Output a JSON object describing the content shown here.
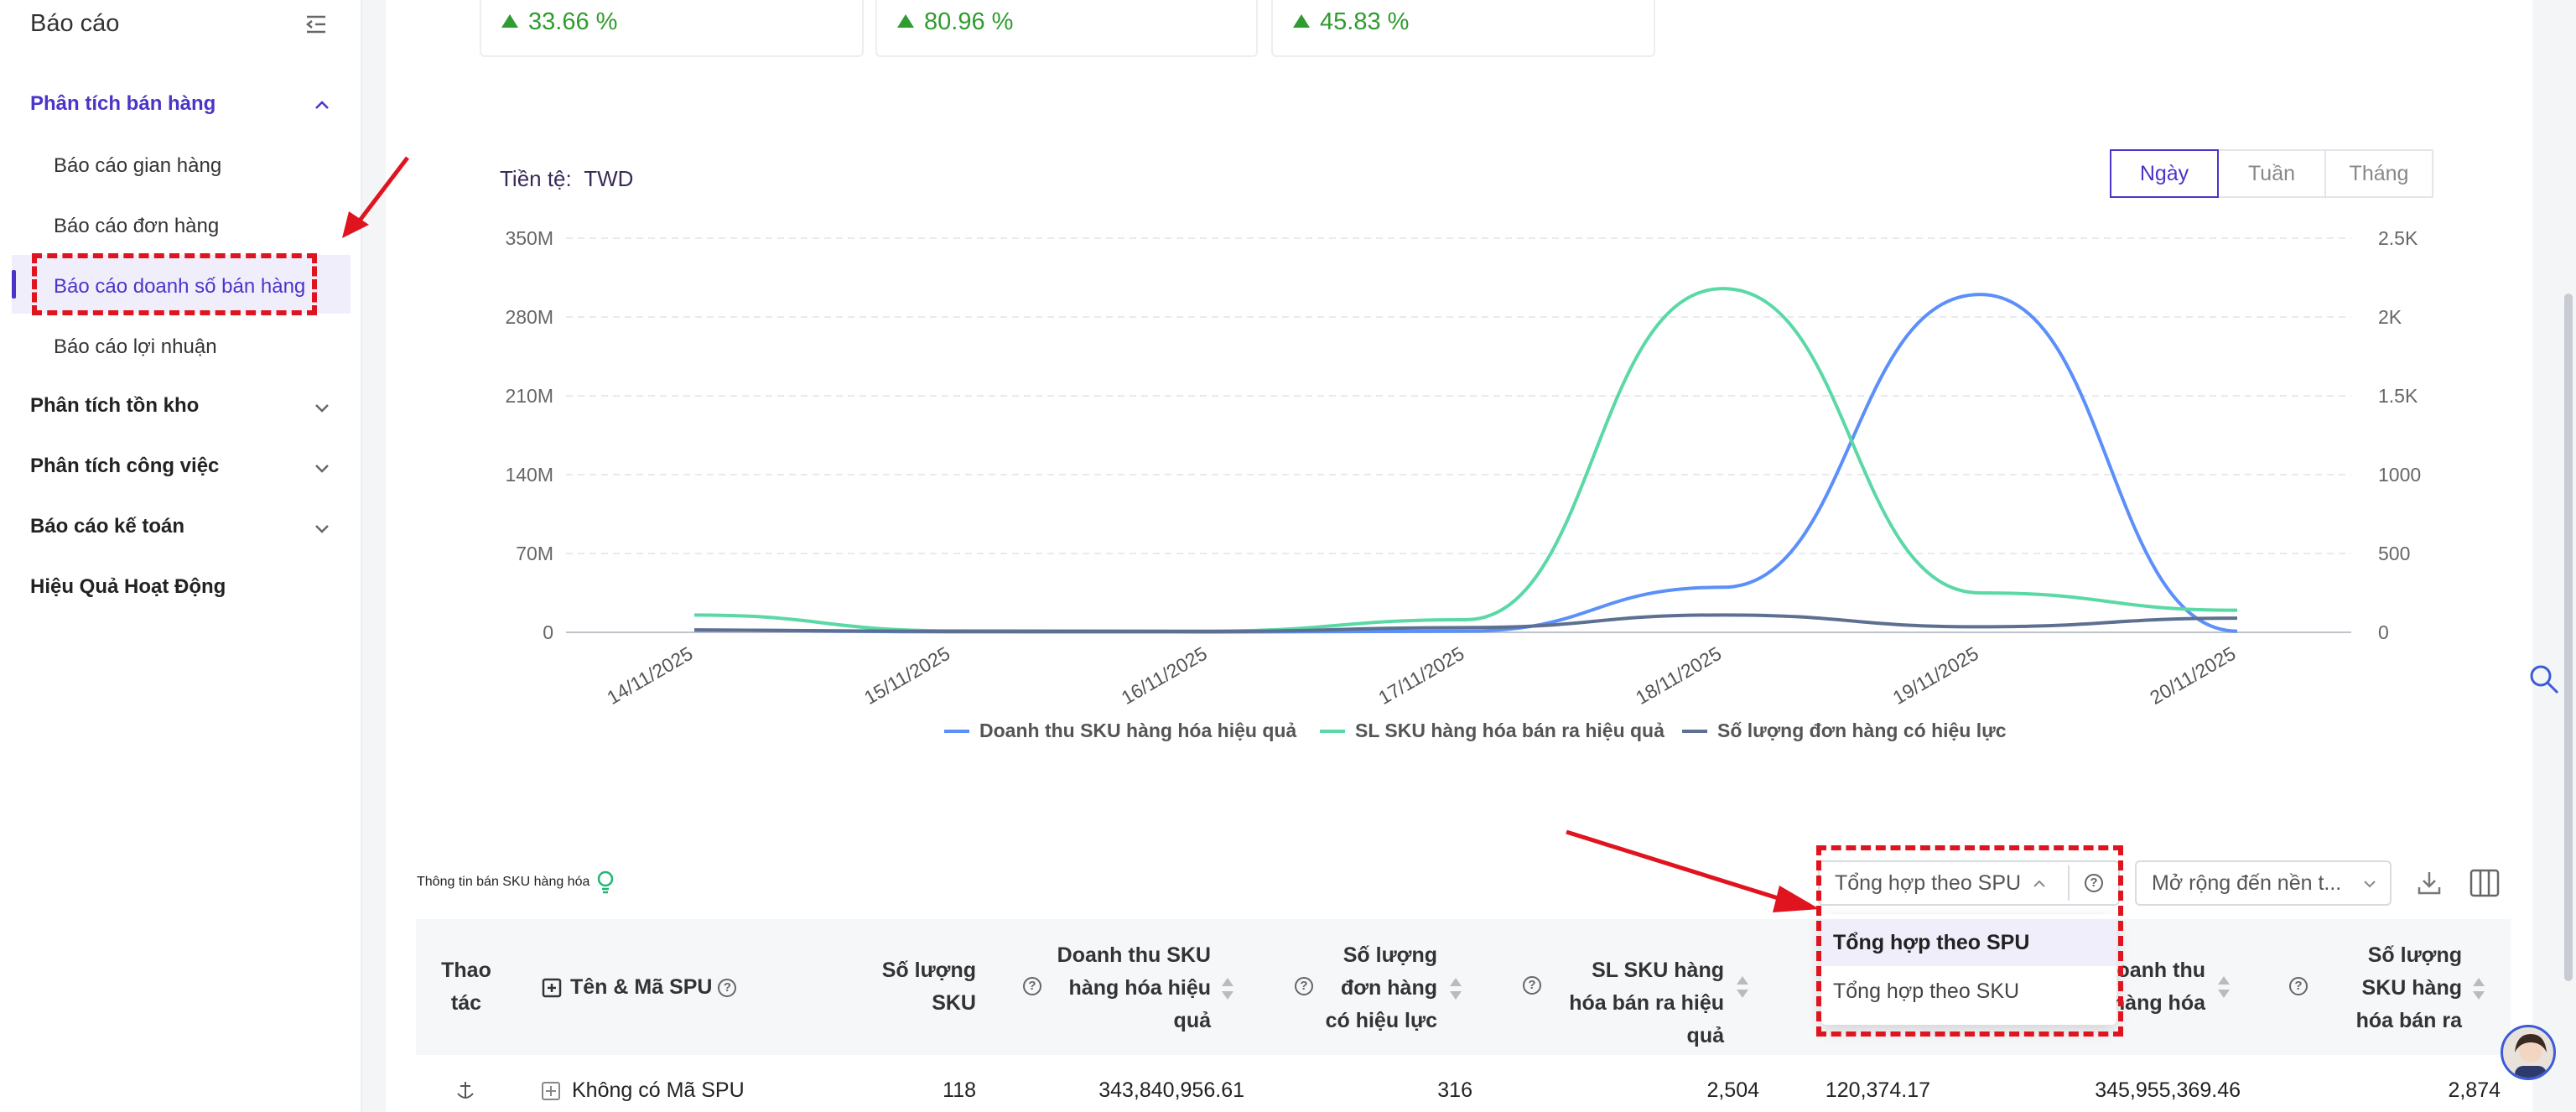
{
  "sidebar": {
    "title": "Báo cáo",
    "groups": [
      {
        "label": "Phân tích bán hàng",
        "expanded": true
      },
      {
        "label": "Phân tích tồn kho",
        "expanded": false
      },
      {
        "label": "Phân tích công việc",
        "expanded": false
      },
      {
        "label": "Báo cáo kế toán",
        "expanded": false
      },
      {
        "label": "Hiệu Quả Hoạt Động",
        "expanded": false
      }
    ],
    "items": [
      {
        "label": "Báo cáo gian hàng"
      },
      {
        "label": "Báo cáo đơn hàng"
      },
      {
        "label": "Báo cáo doanh số bán hàng",
        "selected": true
      },
      {
        "label": "Báo cáo lợi nhuận"
      }
    ]
  },
  "kpis": [
    {
      "value": "33.66 %"
    },
    {
      "value": "80.96 %"
    },
    {
      "value": "45.83 %"
    }
  ],
  "currency": {
    "label": "Tiền tệ:",
    "value": "TWD"
  },
  "period_tabs": [
    {
      "label": "Ngày",
      "active": true
    },
    {
      "label": "Tuần",
      "active": false
    },
    {
      "label": "Tháng",
      "active": false
    }
  ],
  "chart_data": {
    "type": "line",
    "x": [
      "14/11/2025",
      "15/11/2025",
      "16/11/2025",
      "17/11/2025",
      "18/11/2025",
      "19/11/2025",
      "20/11/2025"
    ],
    "left_axis_ticks": [
      "0",
      "70M",
      "140M",
      "210M",
      "280M",
      "350M"
    ],
    "right_axis_ticks": [
      "0",
      "500",
      "1000",
      "1.5K",
      "2K",
      "2.5K"
    ],
    "ylim_left": [
      0,
      350000000
    ],
    "ylim_right": [
      0,
      2500
    ],
    "series": [
      {
        "name": "Doanh thu SKU hàng hóa hiệu quả",
        "axis": "left",
        "color": "#5b8ff9",
        "values": [
          2000000,
          500000,
          300000,
          1000000,
          40000000,
          300000000,
          1000000
        ]
      },
      {
        "name": "SL SKU hàng hóa bán ra hiệu quả",
        "axis": "right",
        "color": "#5ad8a6",
        "values": [
          110,
          10,
          8,
          80,
          2180,
          250,
          140
        ]
      },
      {
        "name": "Số lượng đơn hàng có hiệu lực",
        "axis": "right",
        "color": "#5d7092",
        "values": [
          15,
          5,
          5,
          30,
          110,
          35,
          90
        ]
      }
    ],
    "grid": true,
    "legend_position": "bottom"
  },
  "table": {
    "title": "Thông tin bán SKU hàng hóa",
    "aggregate_select": {
      "value": "Tổng hợp theo SPU",
      "options": [
        "Tổng hợp theo SPU",
        "Tổng hợp theo SKU"
      ]
    },
    "expand_select": {
      "value": "Mở rộng đến nền t..."
    },
    "columns": [
      {
        "label": "Thao tác"
      },
      {
        "label": "Tên & Mã SPU"
      },
      {
        "label": "Số lượng SKU"
      },
      {
        "label": "Doanh thu SKU hàng hóa hiệu quả"
      },
      {
        "label": "Số lượng đơn hàng có hiệu lực"
      },
      {
        "label": "SL SKU hàng hóa bán ra hiệu quả"
      },
      {
        "label": "oanh thu hàng hóa"
      },
      {
        "label": "Số lượng SKU hàng hóa bán ra"
      }
    ],
    "rows": [
      {
        "name": "Không có Mã SPU",
        "sku_count": "118",
        "effective_revenue": "343,840,956.61",
        "valid_orders": "316",
        "sku_sold_effective": "2,504",
        "hidden_col": "120,374.17",
        "revenue": "345,955,369.46",
        "sku_sold": "2,874"
      }
    ]
  }
}
